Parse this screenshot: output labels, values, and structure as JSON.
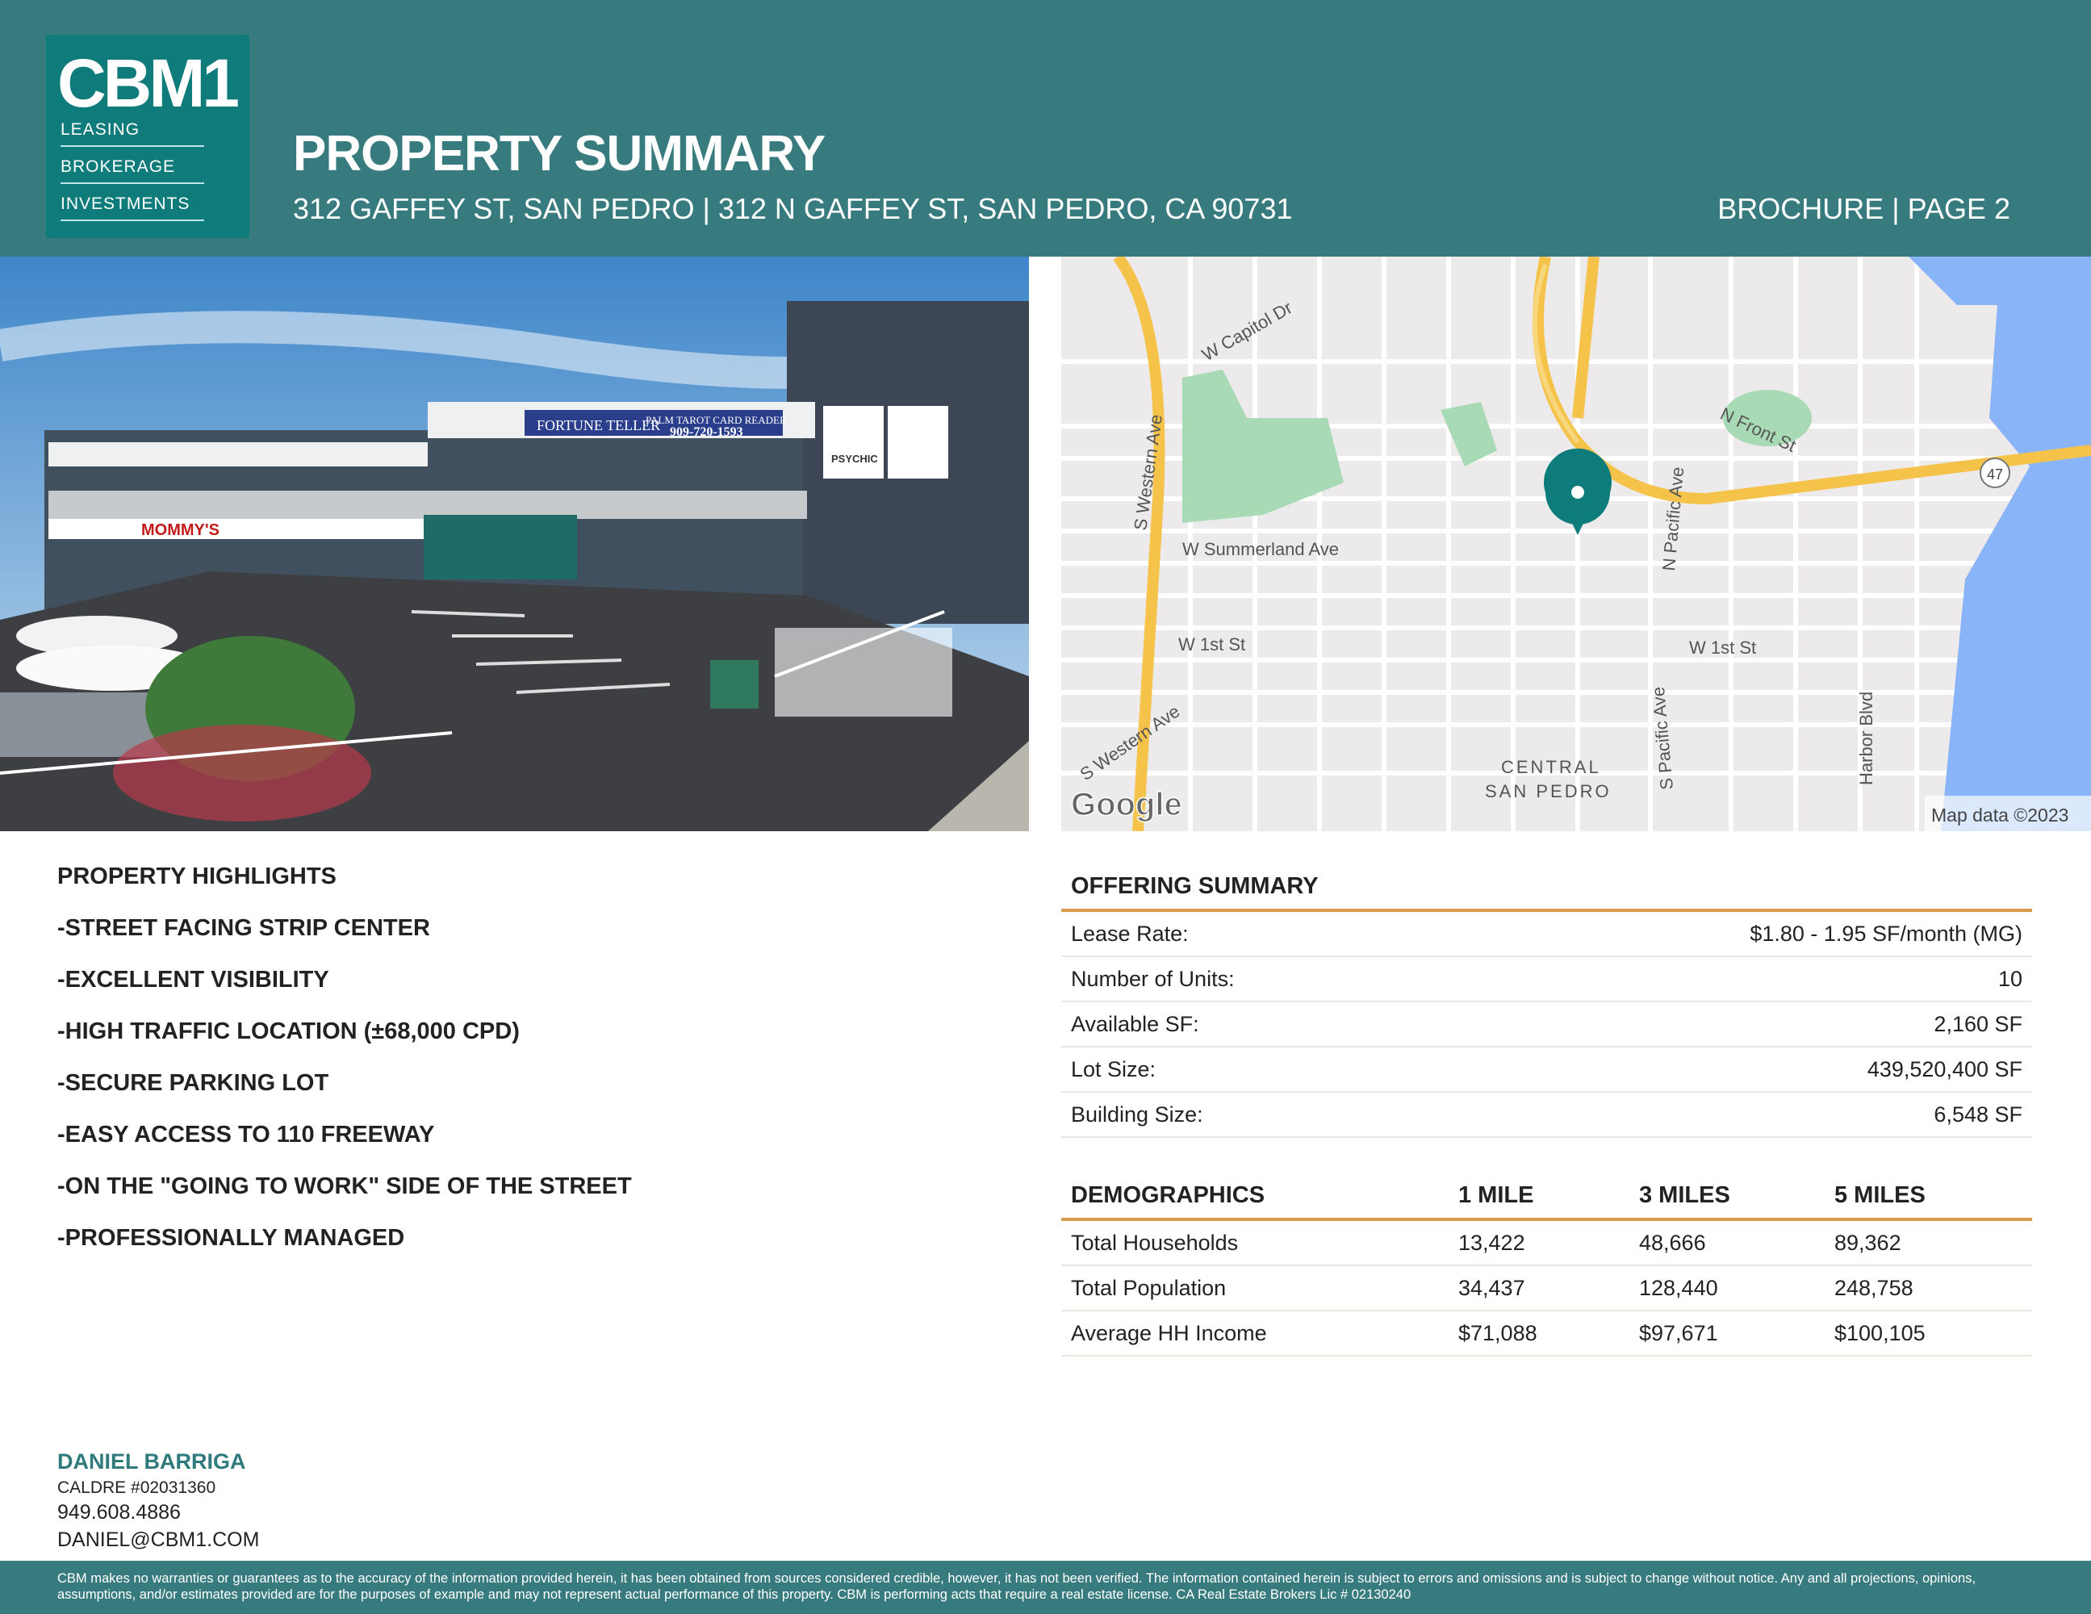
{
  "logo": {
    "brand": "CBM1",
    "tags": [
      "LEASING",
      "BROKERAGE",
      "INVESTMENTS"
    ]
  },
  "header": {
    "title": "PROPERTY SUMMARY",
    "address": "312 GAFFEY ST, SAN PEDRO | 312 N GAFFEY ST, SAN PEDRO, CA 90731",
    "page": "BROCHURE | PAGE 2"
  },
  "photo": {
    "signs": [
      "FORTUNE TELLER",
      "PALM TAROT CARD READER",
      "909-720-1593",
      "MOMMY'S",
      "PSYCHIC"
    ]
  },
  "map": {
    "labels": [
      "W Capitol Dr",
      "S Western Ave",
      "W Summerland Ave",
      "W 1st St",
      "W 1st St",
      "N Pacific Ave",
      "S Pacific Ave",
      "N Front St",
      "Harbor Blvd",
      "S Western Ave",
      "CENTRAL",
      "SAN PEDRO",
      "47"
    ],
    "logo": "Google",
    "attribution": "Map data ©2023",
    "colors": {
      "highway": "#f5c24a",
      "water": "#8ab4f8",
      "park": "#a8dab5",
      "pin": "#0e7c7b"
    }
  },
  "highlights": {
    "title": "PROPERTY HIGHLIGHTS",
    "items": [
      "-STREET FACING STRIP CENTER",
      "-EXCELLENT VISIBILITY",
      "-HIGH TRAFFIC LOCATION (±68,000 CPD)",
      "-SECURE PARKING LOT",
      "-EASY ACCESS TO 110 FREEWAY",
      "-ON THE \"GOING TO WORK\" SIDE OF THE STREET",
      "-PROFESSIONALLY MANAGED"
    ]
  },
  "offering": {
    "title": "OFFERING SUMMARY",
    "rows": [
      {
        "label": "Lease Rate:",
        "value": "$1.80 - 1.95 SF/month (MG)"
      },
      {
        "label": "Number of Units:",
        "value": "10"
      },
      {
        "label": "Available SF:",
        "value": "2,160 SF"
      },
      {
        "label": "Lot Size:",
        "value": "439,520,400 SF"
      },
      {
        "label": "Building Size:",
        "value": "6,548 SF"
      }
    ]
  },
  "demographics": {
    "headers": [
      "DEMOGRAPHICS",
      "1 MILE",
      "3 MILES",
      "5 MILES"
    ],
    "rows": [
      [
        "Total Households",
        "13,422",
        "48,666",
        "89,362"
      ],
      [
        "Total Population",
        "34,437",
        "128,440",
        "248,758"
      ],
      [
        "Average HH Income",
        "$71,088",
        "$97,671",
        "$100,105"
      ]
    ]
  },
  "contact": {
    "name": "DANIEL BARRIGA",
    "license": "CALDRE #02031360",
    "phone": "949.608.4886",
    "email": "DANIEL@CBM1.COM"
  },
  "footer": {
    "disclaimer": "CBM makes no warranties or guarantees as to the accuracy of the information provided herein, it has been obtained from sources considered credible, however, it has not been verified. The information contained herein is subject to errors and omissions and is subject to change without notice. Any and all projections, opinions, assumptions, and/or estimates provided are for the purposes of example and may not represent actual performance of this property. CBM is performing acts that require a real estate license. CA Real Estate Brokers Lic # 02130240"
  }
}
